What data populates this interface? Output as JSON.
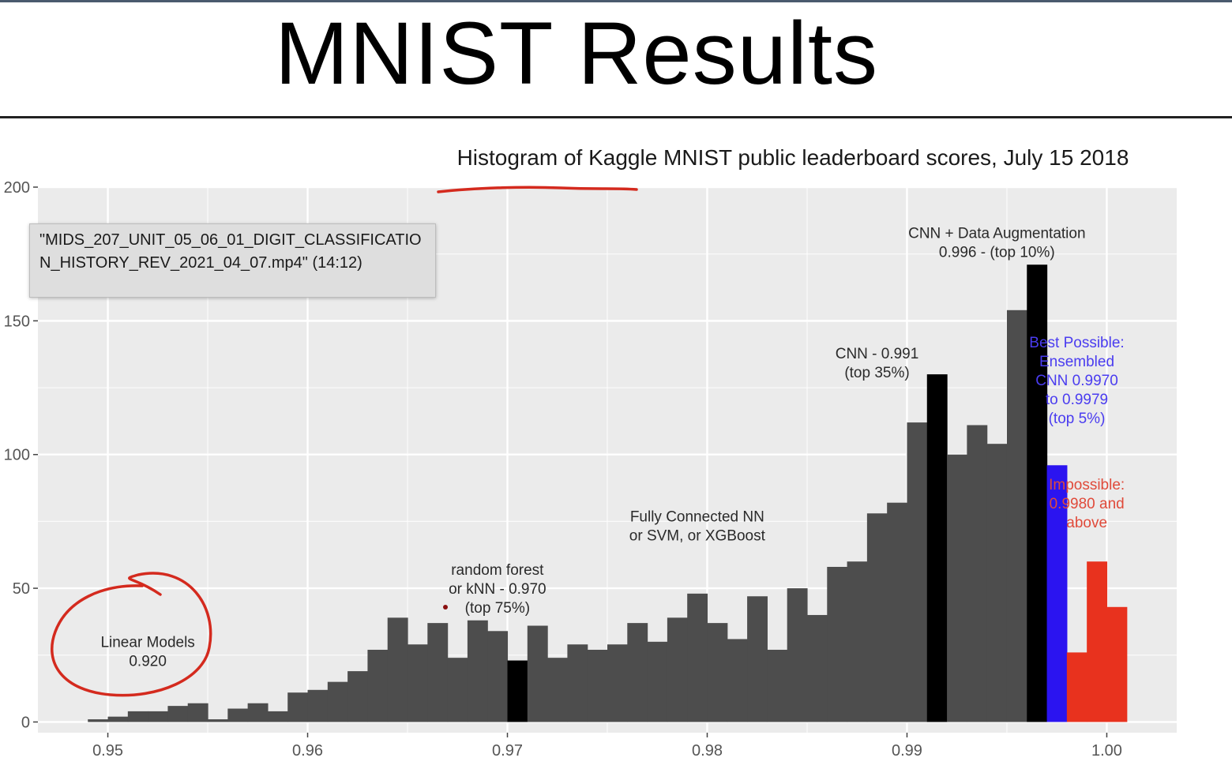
{
  "slide": {
    "title": "MNIST Results"
  },
  "tooltip": {
    "text": "\"MIDS_207_UNIT_05_06_01_DIGIT_CLASSIFICATION_HISTORY_REV_2021_04_07.mp4\" (14:12)"
  },
  "colors": {
    "panel": "#ebebeb",
    "gridline": "#ffffff",
    "bar_default": "#4d4d4d",
    "bar_highlight": "#000000",
    "bar_best": "#2b14f0",
    "bar_impossible": "#e8321e",
    "annotation_best": "#4a3cf0",
    "annotation_impossible": "#e04a3a",
    "ink": "#d42a1e"
  },
  "chart_data": {
    "type": "bar",
    "title": "Histogram of Kaggle MNIST public leaderboard scores, July 15 2018",
    "xlabel": "",
    "ylabel": "",
    "xlim": [
      0.9465,
      1.0035
    ],
    "ylim": [
      -4,
      200
    ],
    "x_ticks": [
      {
        "value": 0.95,
        "label": "0.95"
      },
      {
        "value": 0.96,
        "label": "0.96"
      },
      {
        "value": 0.97,
        "label": "0.97"
      },
      {
        "value": 0.98,
        "label": "0.98"
      },
      {
        "value": 0.99,
        "label": "0.99"
      },
      {
        "value": 1.0,
        "label": "1.00"
      }
    ],
    "y_ticks": [
      {
        "value": 0,
        "label": "0"
      },
      {
        "value": 50,
        "label": "50"
      },
      {
        "value": 100,
        "label": "100"
      },
      {
        "value": 150,
        "label": "150"
      },
      {
        "value": 200,
        "label": "200"
      }
    ],
    "grid": true,
    "bin_width": 0.001,
    "bins": [
      {
        "x": 0.9495,
        "y": 1,
        "group": "default"
      },
      {
        "x": 0.9505,
        "y": 2,
        "group": "default"
      },
      {
        "x": 0.9515,
        "y": 4,
        "group": "default"
      },
      {
        "x": 0.9525,
        "y": 4,
        "group": "default"
      },
      {
        "x": 0.9535,
        "y": 6,
        "group": "default"
      },
      {
        "x": 0.9545,
        "y": 7,
        "group": "default"
      },
      {
        "x": 0.9555,
        "y": 1,
        "group": "default"
      },
      {
        "x": 0.9565,
        "y": 5,
        "group": "default"
      },
      {
        "x": 0.9575,
        "y": 7,
        "group": "default"
      },
      {
        "x": 0.9585,
        "y": 4,
        "group": "default"
      },
      {
        "x": 0.9595,
        "y": 11,
        "group": "default"
      },
      {
        "x": 0.9605,
        "y": 12,
        "group": "default"
      },
      {
        "x": 0.9615,
        "y": 15,
        "group": "default"
      },
      {
        "x": 0.9625,
        "y": 19,
        "group": "default"
      },
      {
        "x": 0.9635,
        "y": 27,
        "group": "default"
      },
      {
        "x": 0.9645,
        "y": 39,
        "group": "default"
      },
      {
        "x": 0.9655,
        "y": 29,
        "group": "default"
      },
      {
        "x": 0.9665,
        "y": 37,
        "group": "default"
      },
      {
        "x": 0.9675,
        "y": 24,
        "group": "default"
      },
      {
        "x": 0.9685,
        "y": 38,
        "group": "default"
      },
      {
        "x": 0.9695,
        "y": 34,
        "group": "default"
      },
      {
        "x": 0.9705,
        "y": 23,
        "group": "highlight"
      },
      {
        "x": 0.9715,
        "y": 36,
        "group": "default"
      },
      {
        "x": 0.9725,
        "y": 24,
        "group": "default"
      },
      {
        "x": 0.9735,
        "y": 29,
        "group": "default"
      },
      {
        "x": 0.9745,
        "y": 27,
        "group": "default"
      },
      {
        "x": 0.9755,
        "y": 29,
        "group": "default"
      },
      {
        "x": 0.9765,
        "y": 37,
        "group": "default"
      },
      {
        "x": 0.9775,
        "y": 30,
        "group": "default"
      },
      {
        "x": 0.9785,
        "y": 39,
        "group": "default"
      },
      {
        "x": 0.9795,
        "y": 48,
        "group": "default"
      },
      {
        "x": 0.9805,
        "y": 37,
        "group": "default"
      },
      {
        "x": 0.9815,
        "y": 31,
        "group": "default"
      },
      {
        "x": 0.9825,
        "y": 47,
        "group": "default"
      },
      {
        "x": 0.9835,
        "y": 27,
        "group": "default"
      },
      {
        "x": 0.9845,
        "y": 50,
        "group": "default"
      },
      {
        "x": 0.9855,
        "y": 40,
        "group": "default"
      },
      {
        "x": 0.9865,
        "y": 58,
        "group": "default"
      },
      {
        "x": 0.9875,
        "y": 60,
        "group": "default"
      },
      {
        "x": 0.9885,
        "y": 78,
        "group": "default"
      },
      {
        "x": 0.9895,
        "y": 82,
        "group": "default"
      },
      {
        "x": 0.9905,
        "y": 112,
        "group": "default"
      },
      {
        "x": 0.9915,
        "y": 130,
        "group": "highlight"
      },
      {
        "x": 0.9925,
        "y": 100,
        "group": "default"
      },
      {
        "x": 0.9935,
        "y": 111,
        "group": "default"
      },
      {
        "x": 0.9945,
        "y": 104,
        "group": "default"
      },
      {
        "x": 0.9955,
        "y": 154,
        "group": "default"
      },
      {
        "x": 0.9965,
        "y": 171,
        "group": "highlight"
      },
      {
        "x": 0.9975,
        "y": 96,
        "group": "best"
      },
      {
        "x": 0.9985,
        "y": 26,
        "group": "impossible"
      },
      {
        "x": 0.9995,
        "y": 60,
        "group": "impossible"
      },
      {
        "x": 1.0005,
        "y": 43,
        "group": "impossible"
      }
    ],
    "annotations": [
      {
        "lines": [
          "Linear Models",
          "0.920"
        ],
        "x": 0.952,
        "y": 28,
        "color": "default"
      },
      {
        "lines": [
          "random forest",
          "or kNN - 0.970",
          "(top 75%)"
        ],
        "x": 0.9695,
        "y": 55,
        "color": "default"
      },
      {
        "lines": [
          "Fully Connected NN",
          "or SVM, or XGBoost"
        ],
        "x": 0.9795,
        "y": 75,
        "color": "default"
      },
      {
        "lines": [
          "CNN - 0.991",
          "(top 35%)"
        ],
        "x": 0.9885,
        "y": 136,
        "color": "default"
      },
      {
        "lines": [
          "CNN + Data Augmentation",
          "0.996 - (top 10%)"
        ],
        "x": 0.9945,
        "y": 181,
        "color": "default"
      },
      {
        "lines": [
          "Best Possible:",
          "Ensembled",
          "CNN 0.9970",
          "to 0.9979",
          "(top 5%)"
        ],
        "x": 0.9985,
        "y": 140,
        "color": "best"
      },
      {
        "lines": [
          "Impossible:",
          "0.9980 and",
          "above"
        ],
        "x": 0.999,
        "y": 87,
        "color": "impossible"
      }
    ]
  }
}
